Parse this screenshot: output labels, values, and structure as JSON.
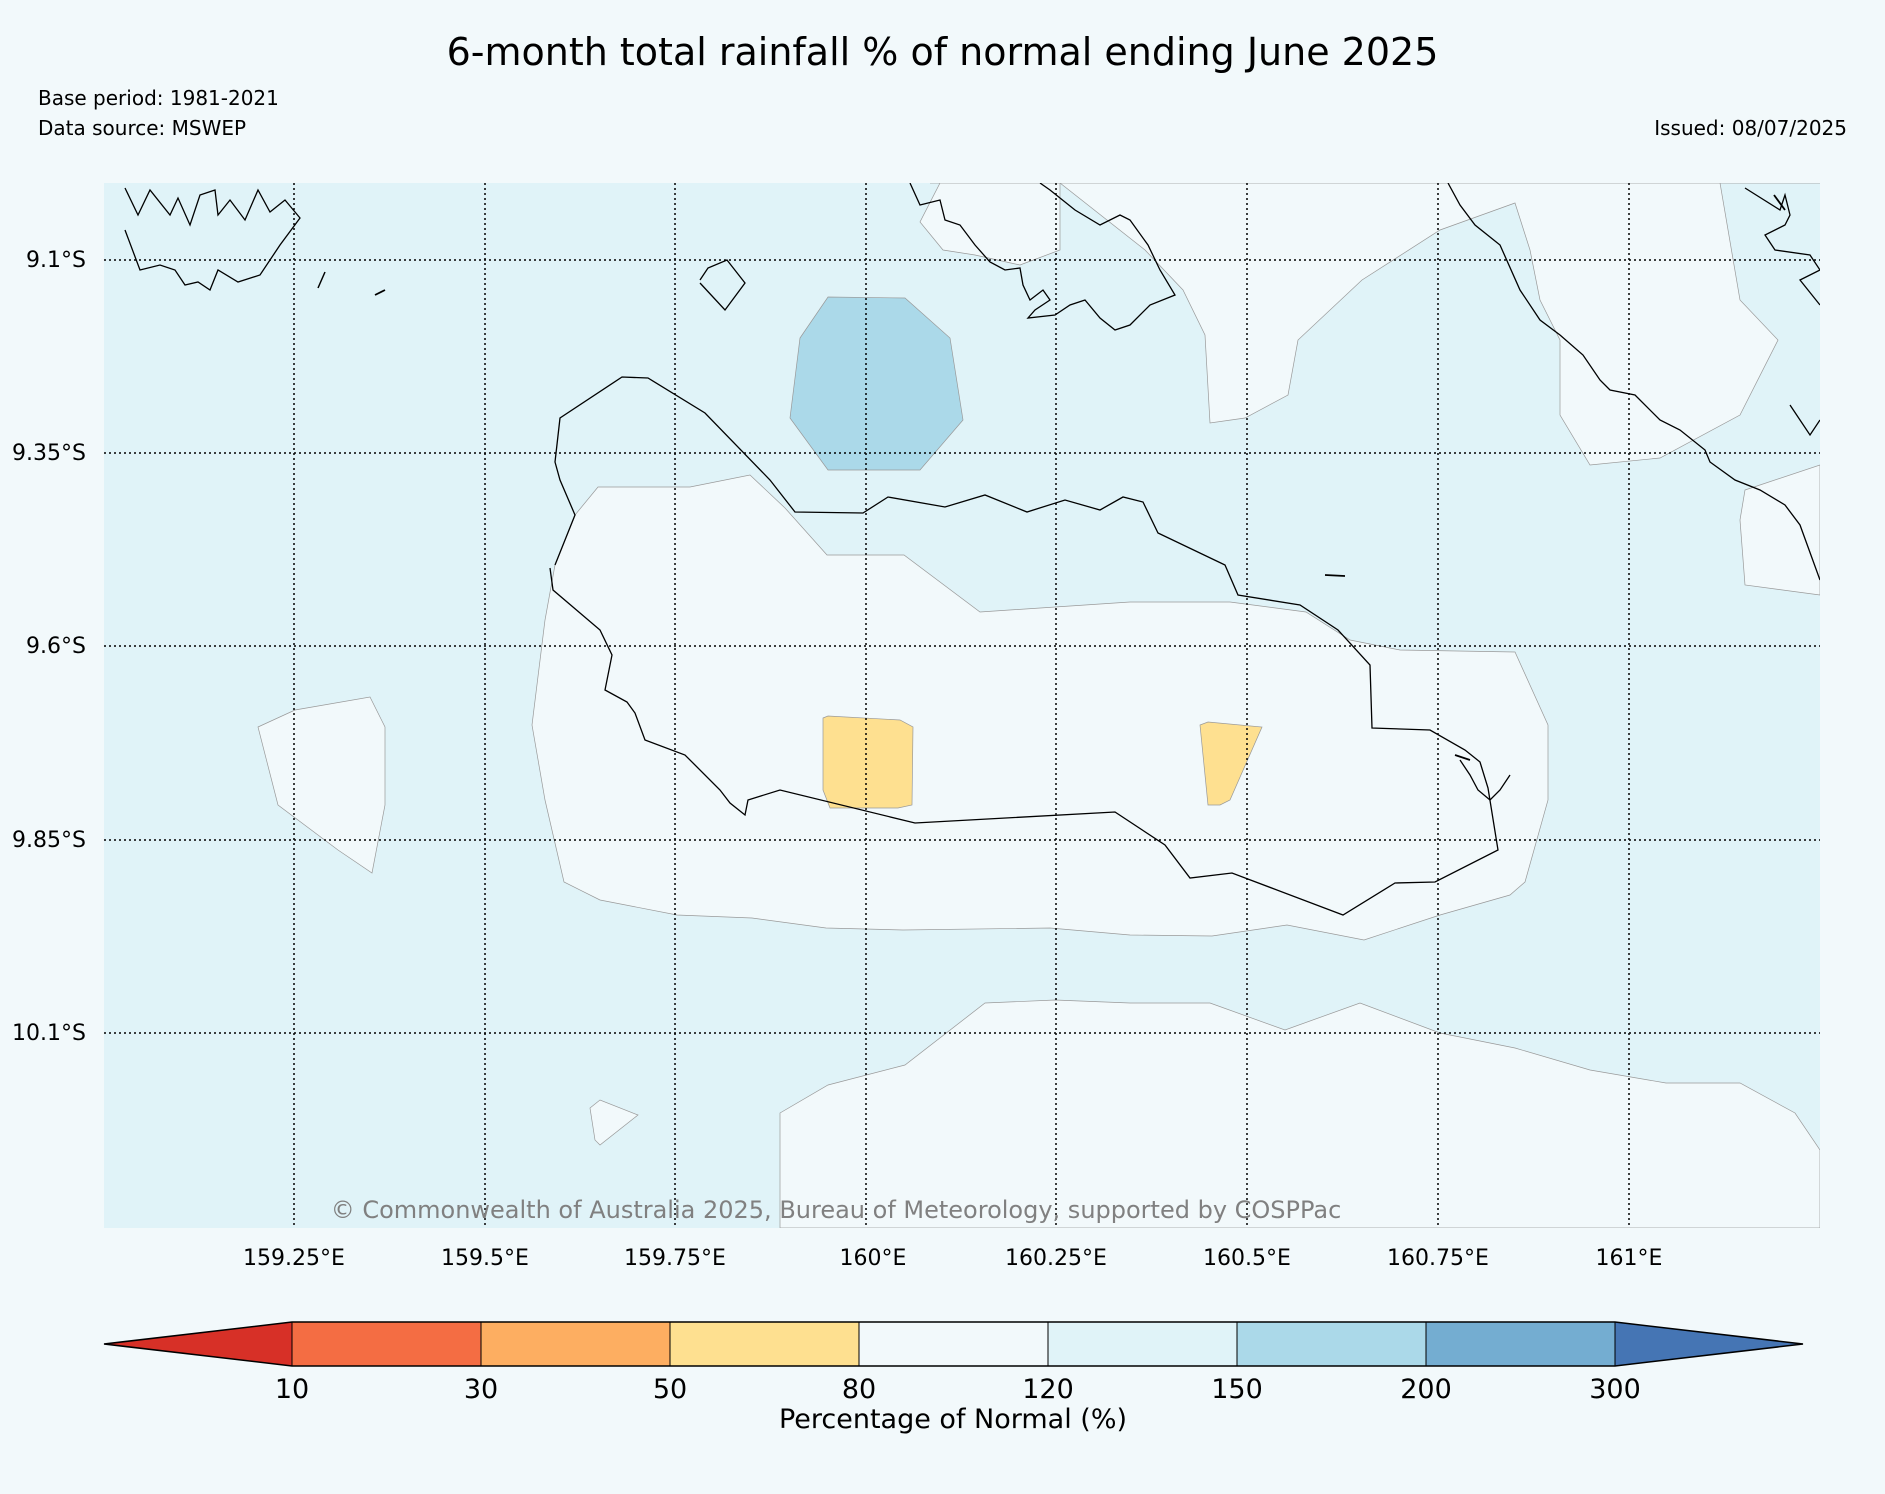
{
  "title": "6-month total rainfall % of normal ending June 2025",
  "base_period": "Base period: 1981-2021",
  "data_source": "Data source: MSWEP",
  "issued": "Issued: 08/07/2025",
  "copyright": "© Commonwealth of Australia 2025, Bureau of Meteorology, supported by COSPPac",
  "map": {
    "lat_labels": [
      "9.1°S",
      "9.35°S",
      "9.6°S",
      "9.85°S",
      "10.1°S"
    ],
    "lon_labels": [
      "159.25°E",
      "159.5°E",
      "159.75°E",
      "160°E",
      "160.25°E",
      "160.5°E",
      "160.75°E",
      "161°E"
    ],
    "grid_style": "dotted",
    "colors": {
      "land_outline": "#000000",
      "contour_line": "#999999"
    }
  },
  "colorbar": {
    "title": "Percentage of Normal (%)",
    "ticks": [
      "10",
      "30",
      "50",
      "80",
      "120",
      "150",
      "200",
      "300"
    ],
    "colors": [
      "#d73027",
      "#f46d43",
      "#fdae61",
      "#fee090",
      "#f2f9fb",
      "#e0f3f8",
      "#abd9e9",
      "#74add1",
      "#4575b4"
    ]
  }
}
